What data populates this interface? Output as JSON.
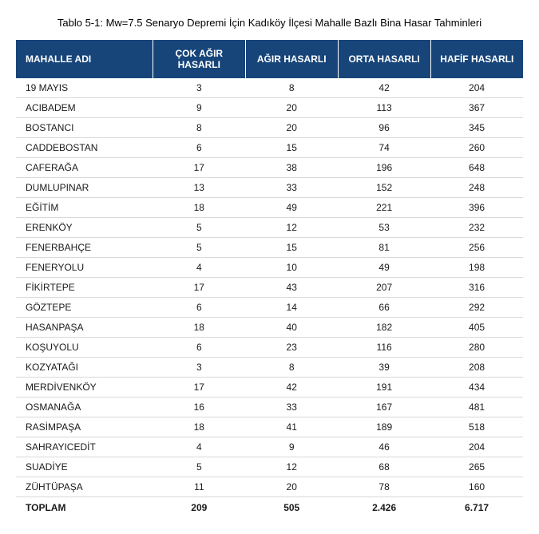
{
  "title": "Tablo 5-1: Mw=7.5 Senaryo Depremi İçin Kadıköy İlçesi Mahalle Bazlı Bina Hasar Tahminleri",
  "table": {
    "columns": [
      "MAHALLE ADI",
      "ÇOK AĞIR HASARLI",
      "AĞIR HASARLI",
      "ORTA HASARLI",
      "HAFİF HASARLI"
    ],
    "header_bg": "#17457a",
    "header_color": "#ffffff",
    "row_border_color": "#d9d9d9",
    "font_size_body": 12,
    "font_size_title": 13,
    "rows": [
      [
        "19 MAYIS",
        "3",
        "8",
        "42",
        "204"
      ],
      [
        "ACIBADEM",
        "9",
        "20",
        "113",
        "367"
      ],
      [
        "BOSTANCI",
        "8",
        "20",
        "96",
        "345"
      ],
      [
        "CADDEBOSTAN",
        "6",
        "15",
        "74",
        "260"
      ],
      [
        "CAFERAĞA",
        "17",
        "38",
        "196",
        "648"
      ],
      [
        "DUMLUPINAR",
        "13",
        "33",
        "152",
        "248"
      ],
      [
        "EĞİTİM",
        "18",
        "49",
        "221",
        "396"
      ],
      [
        "ERENKÖY",
        "5",
        "12",
        "53",
        "232"
      ],
      [
        "FENERBAHÇE",
        "5",
        "15",
        "81",
        "256"
      ],
      [
        "FENERYOLU",
        "4",
        "10",
        "49",
        "198"
      ],
      [
        "FİKİRTEPE",
        "17",
        "43",
        "207",
        "316"
      ],
      [
        "GÖZTEPE",
        "6",
        "14",
        "66",
        "292"
      ],
      [
        "HASANPAŞA",
        "18",
        "40",
        "182",
        "405"
      ],
      [
        "KOŞUYOLU",
        "6",
        "23",
        "116",
        "280"
      ],
      [
        "KOZYATAĞI",
        "3",
        "8",
        "39",
        "208"
      ],
      [
        "MERDİVENKÖY",
        "17",
        "42",
        "191",
        "434"
      ],
      [
        "OSMANAĞA",
        "16",
        "33",
        "167",
        "481"
      ],
      [
        "RASİMPAŞA",
        "18",
        "41",
        "189",
        "518"
      ],
      [
        "SAHRAYICEDİT",
        "4",
        "9",
        "46",
        "204"
      ],
      [
        "SUADİYE",
        "5",
        "12",
        "68",
        "265"
      ],
      [
        "ZÜHTÜPAŞA",
        "11",
        "20",
        "78",
        "160"
      ]
    ],
    "total_row": [
      "TOPLAM",
      "209",
      "505",
      "2.426",
      "6.717"
    ],
    "col_alignment": [
      "left",
      "center",
      "center",
      "center",
      "center"
    ]
  }
}
